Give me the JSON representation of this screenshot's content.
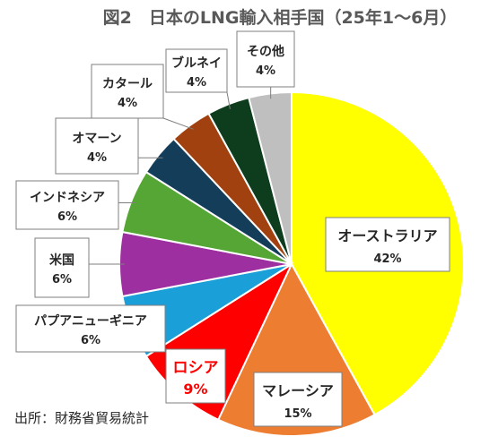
{
  "chart_data": {
    "type": "pie",
    "title": "図2　日本のLNG輸入相手国（25年1～6月）",
    "source": "出所：財務省貿易統計",
    "slices": [
      {
        "label": "オーストラリア",
        "value": 42,
        "display": "42%",
        "color": "#FFFF00"
      },
      {
        "label": "マレーシア",
        "value": 15,
        "display": "15%",
        "color": "#ED7D31"
      },
      {
        "label": "ロシア",
        "value": 9,
        "display": "9%",
        "color": "#FF0000",
        "label_color": "#FF0000"
      },
      {
        "label": "パプアニューギニア",
        "value": 6,
        "display": "6%",
        "color": "#1B9FD9"
      },
      {
        "label": "米国",
        "value": 6,
        "display": "6%",
        "color": "#9E2FA0"
      },
      {
        "label": "インドネシア",
        "value": 6,
        "display": "6%",
        "color": "#55A634"
      },
      {
        "label": "オマーン",
        "value": 4,
        "display": "4%",
        "color": "#143D59"
      },
      {
        "label": "カタール",
        "value": 4,
        "display": "4%",
        "color": "#A1410F"
      },
      {
        "label": "ブルネイ",
        "value": 4,
        "display": "4%",
        "color": "#0E3D1E"
      },
      {
        "label": "その他",
        "value": 4,
        "display": "4%",
        "color": "#BFBFBF"
      }
    ]
  }
}
